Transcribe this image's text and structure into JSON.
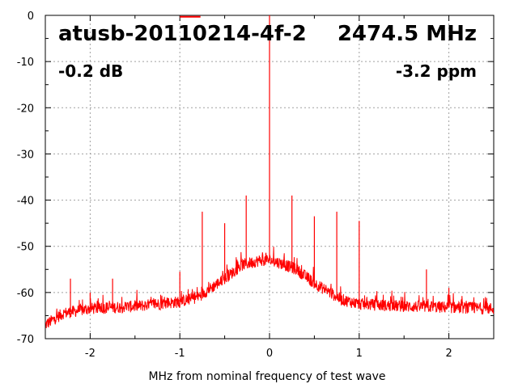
{
  "chart_data": {
    "type": "line",
    "title": "atusb-20110214-4f-2",
    "frequency": "2474.5 MHz",
    "level": "-0.2 dB",
    "offset": "-3.2 ppm",
    "xlabel": "MHz from nominal frequency of test wave",
    "ylabel": "",
    "xlim": [
      -2.5,
      2.5
    ],
    "ylim": [
      -70,
      0
    ],
    "xticks": [
      "-2",
      "-1",
      "0",
      "1",
      "2"
    ],
    "yticks": [
      "0",
      "-10",
      "-20",
      "-30",
      "-40",
      "-50",
      "-60",
      "-70"
    ],
    "grid": true,
    "line_color": "#ff0000",
    "series": [
      {
        "noise_floor": {
          "x": [
            -2.5,
            -2.3,
            -2.0,
            -1.5,
            -1.0,
            -0.8,
            -0.5,
            -0.3,
            -0.1,
            0.0,
            0.1,
            0.3,
            0.5,
            0.8,
            1.0,
            1.5,
            2.0,
            2.5
          ],
          "y": [
            -67,
            -64.5,
            -63.5,
            -63,
            -62,
            -61,
            -57,
            -54,
            -53,
            -53,
            -53.5,
            -55,
            -58,
            -61.5,
            -62.5,
            -63,
            -63.2,
            -63.5
          ]
        },
        "spurs": {
          "x": [
            -2.22,
            -2.0,
            -1.75,
            -1.0,
            -0.75,
            -0.5,
            -0.26,
            0.0,
            0.25,
            0.5,
            0.75,
            1.0,
            1.75,
            2.0
          ],
          "y": [
            -57,
            -60,
            -57,
            -55.5,
            -42.5,
            -45,
            -39,
            0,
            -39,
            -43.5,
            -42.5,
            -44.5,
            -55,
            -59
          ]
        }
      }
    ]
  }
}
